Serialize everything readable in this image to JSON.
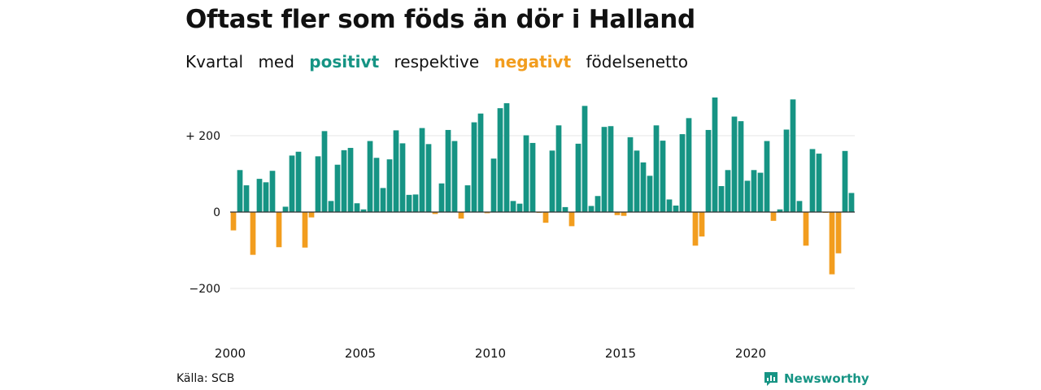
{
  "title": "Oftast fler som föds än dör i Halland",
  "subtitle": {
    "part1": "Kvartal",
    "part2": "med",
    "positive_word": "positivt",
    "part3": "respektive",
    "negative_word": "negativt",
    "part4": "födelsenetto"
  },
  "source": "Källa: SCB",
  "brand": "Newsworthy",
  "colors": {
    "positive": "#169484",
    "negative": "#f29d1e",
    "grid": "#e6e6e6",
    "zero_line": "#333333"
  },
  "chart_data": {
    "type": "bar",
    "x_axis": "quarterly 2000Q1-2023Q4",
    "y_ticks": [
      200,
      0,
      -200
    ],
    "y_tick_labels": [
      "+ 200",
      "0",
      "−200"
    ],
    "x_ticks": [
      2000,
      2005,
      2010,
      2015,
      2020
    ],
    "x_tick_labels": [
      "2000",
      "2005",
      "2010",
      "2015",
      "2020"
    ],
    "ylim": [
      -300,
      300
    ],
    "grid": true,
    "values": [
      -48,
      110,
      70,
      -112,
      87,
      78,
      108,
      -92,
      14,
      148,
      158,
      -93,
      -14,
      146,
      212,
      29,
      124,
      162,
      168,
      23,
      7,
      186,
      142,
      63,
      138,
      214,
      180,
      45,
      46,
      220,
      178,
      -5,
      75,
      215,
      186,
      -17,
      70,
      235,
      258,
      -3,
      140,
      272,
      285,
      29,
      22,
      201,
      181,
      -2,
      -28,
      161,
      227,
      13,
      -37,
      179,
      278,
      16,
      42,
      223,
      225,
      -8,
      -10,
      196,
      161,
      130,
      95,
      227,
      187,
      33,
      17,
      204,
      246,
      -88,
      -64,
      215,
      300,
      68,
      110,
      250,
      238,
      82,
      110,
      103,
      186,
      -23,
      7,
      216,
      295,
      29,
      -88,
      165,
      153,
      -2,
      -163,
      -108,
      160,
      50
    ]
  }
}
